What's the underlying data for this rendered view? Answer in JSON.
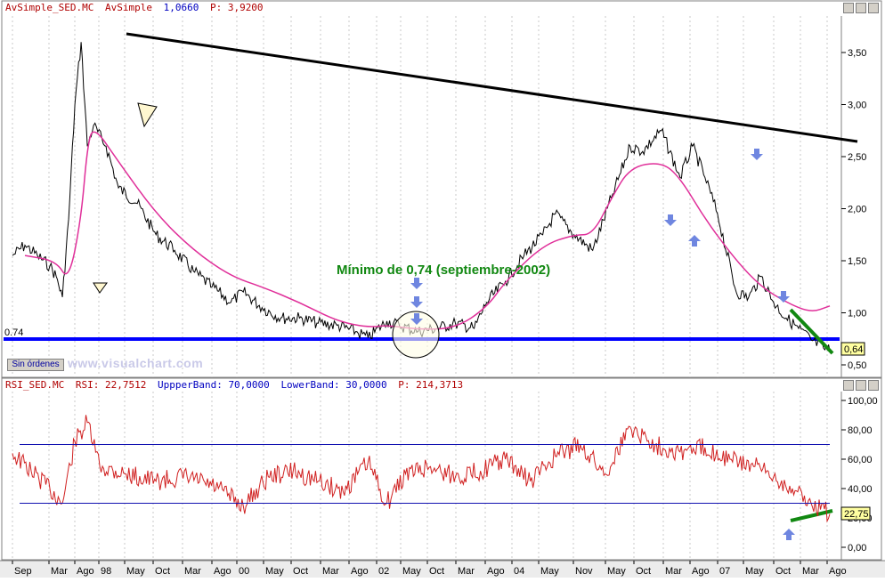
{
  "top_panel": {
    "header_name": "AvSimple_SED.MC",
    "header_study": "AvSimple",
    "header_value": "1,0660",
    "header_p": "P: 3,9200"
  },
  "bottom_panel": {
    "header_name": "RSI_SED.MC",
    "header_rsi": "RSI: 22,7512",
    "header_upper": "UppperBand: 70,0000",
    "header_lower": "LowerBand: 30,0000",
    "header_p": "P: 214,3713"
  },
  "orders_button": "Sin órdenes",
  "watermark": "www.visualchart.com",
  "annotation": "Mínimo de 0,74 (septiembre-2002)",
  "support_label": "0.74",
  "colors": {
    "price": "#000000",
    "sma": "#e0309a",
    "rsi": "#d02020",
    "bands": "#1010b0",
    "support": "#0000ff",
    "divergence": "#118811",
    "arrows": "#6f86e0"
  },
  "chart_data": [
    {
      "type": "line",
      "title": "",
      "series": [
        {
          "name": "AvSimple_SED.MC",
          "note": "daily price bars (approximate)",
          "x": [
            "1997-09",
            "1997-11",
            "1998-01",
            "1998-03",
            "1998-04",
            "1998-05",
            "1998-06",
            "1998-07",
            "1998-08",
            "1998-09",
            "1998-10",
            "1998-12",
            "1999-02",
            "1999-05",
            "1999-08",
            "1999-11",
            "2000-02",
            "2000-05",
            "2000-08",
            "2000-10",
            "2001-01",
            "2001-04",
            "2001-07",
            "2001-10",
            "2002-01",
            "2002-04",
            "2002-06",
            "2002-09",
            "2002-11",
            "2003-02",
            "2003-05",
            "2003-08",
            "2003-11",
            "2004-01",
            "2004-04",
            "2004-07",
            "2004-10",
            "2004-12",
            "2005-03",
            "2005-06",
            "2005-09",
            "2005-12",
            "2006-02",
            "2006-05",
            "2006-08",
            "2006-10",
            "2006-12",
            "2007-02",
            "2007-05",
            "2007-07",
            "2007-09",
            "2007-11",
            "2008-01",
            "2008-03",
            "2008-05",
            "2008-07",
            "2008-08"
          ],
          "values": [
            1.55,
            1.65,
            1.55,
            1.45,
            1.35,
            1.15,
            1.9,
            3.0,
            3.6,
            2.6,
            2.8,
            2.6,
            2.2,
            2.05,
            1.75,
            1.6,
            1.4,
            1.25,
            1.1,
            1.2,
            1.05,
            0.95,
            0.95,
            0.9,
            0.88,
            0.82,
            0.76,
            0.92,
            0.88,
            0.82,
            0.85,
            0.9,
            0.85,
            1.1,
            1.3,
            1.55,
            1.75,
            1.95,
            1.75,
            1.6,
            2.1,
            2.6,
            2.55,
            2.75,
            2.3,
            2.6,
            2.3,
            1.95,
            1.2,
            1.15,
            1.35,
            1.1,
            0.95,
            0.85,
            0.74,
            0.66,
            0.64
          ]
        },
        {
          "name": "AvSimple",
          "note": "simple moving average (approximate)",
          "x": [
            "1997-11",
            "1998-04",
            "1998-06",
            "1998-08",
            "1998-09",
            "1998-10",
            "1999-02",
            "1999-08",
            "2000-02",
            "2000-08",
            "2001-01",
            "2001-07",
            "2002-01",
            "2002-06",
            "2002-09",
            "2003-02",
            "2003-08",
            "2004-01",
            "2004-04",
            "2004-10",
            "2005-03",
            "2005-06",
            "2005-09",
            "2005-12",
            "2006-05",
            "2006-08",
            "2006-12",
            "2007-05",
            "2007-09",
            "2008-01",
            "2008-05",
            "2008-08"
          ],
          "values": [
            1.55,
            1.5,
            1.3,
            1.9,
            2.6,
            2.8,
            2.45,
            1.95,
            1.6,
            1.35,
            1.25,
            1.1,
            0.92,
            0.86,
            0.88,
            0.84,
            0.85,
            1.05,
            1.3,
            1.65,
            1.75,
            1.75,
            2.1,
            2.4,
            2.45,
            2.3,
            1.9,
            1.5,
            1.25,
            1.1,
            1.0,
            1.066
          ]
        }
      ],
      "ylim": [
        0.45,
        3.85
      ],
      "y_ticks": [
        "3,50",
        "3,00",
        "2,50",
        "2,00",
        "1,50",
        "1,00",
        "0,50"
      ],
      "last_value_label": "0,64"
    },
    {
      "type": "line",
      "title": "",
      "series": [
        {
          "name": "RSI",
          "note": "approximate",
          "x": [
            "1997-09",
            "1997-12",
            "1998-03",
            "1998-05",
            "1998-07",
            "1998-09",
            "1998-11",
            "1999-03",
            "1999-08",
            "2000-01",
            "2000-06",
            "2000-10",
            "2001-02",
            "2001-06",
            "2001-10",
            "2002-02",
            "2002-06",
            "2002-09",
            "2002-12",
            "2003-04",
            "2003-08",
            "2003-12",
            "2004-04",
            "2004-08",
            "2004-12",
            "2005-04",
            "2005-08",
            "2005-12",
            "2006-04",
            "2006-08",
            "2006-12",
            "2007-04",
            "2007-08",
            "2007-11",
            "2008-02",
            "2008-05",
            "2008-08"
          ],
          "values": [
            64,
            52,
            40,
            30,
            72,
            85,
            55,
            50,
            45,
            48,
            40,
            28,
            48,
            52,
            45,
            38,
            58,
            30,
            50,
            55,
            48,
            52,
            60,
            45,
            62,
            70,
            50,
            82,
            70,
            65,
            68,
            60,
            55,
            48,
            40,
            30,
            22.75
          ]
        }
      ],
      "bands": [
        70,
        30
      ],
      "ylim": [
        -8,
        102
      ],
      "y_ticks": [
        "100,00",
        "80,00",
        "60,00",
        "40,00",
        "20,00",
        "0,00"
      ],
      "last_value_label": "22,75"
    }
  ],
  "x_axis_labels": [
    "Sep",
    "Mar",
    "Ago",
    "98",
    "May",
    "Oct",
    "Mar",
    "Ago",
    "00",
    "May",
    "Oct",
    "Mar",
    "Ago",
    "02",
    "May",
    "Oct",
    "Mar",
    "Ago",
    "04",
    "May",
    "Nov",
    "May",
    "Oct",
    "Mar",
    "Ago",
    "07",
    "May",
    "Oct",
    "Mar",
    "Ago"
  ]
}
